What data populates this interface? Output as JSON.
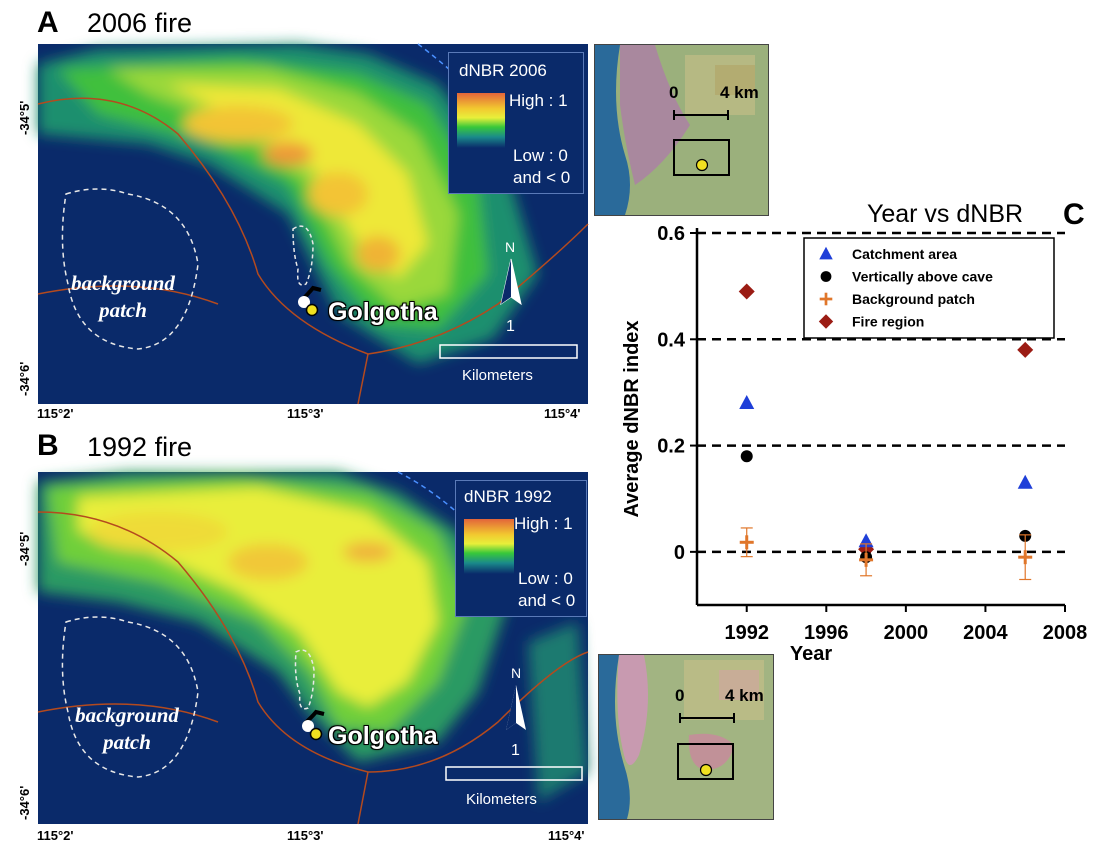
{
  "panel_a": {
    "letter": "A",
    "title": "2006 fire",
    "legend_title": "dNBR 2006",
    "legend_high": "High : 1",
    "legend_low": "Low : 0",
    "legend_low2": "and < 0",
    "background_label_1": "background",
    "background_label_2": "patch",
    "site_label": "Golgotha",
    "north": "N",
    "scale_value": "1",
    "scale_unit": "Kilometers",
    "lat_ticks": [
      "-34°5'",
      "-34°6'"
    ],
    "lon_ticks": [
      "115°2'",
      "115°3'",
      "115°4'"
    ],
    "inset_scale_0": "0",
    "inset_scale_1": "4 km"
  },
  "panel_b": {
    "letter": "B",
    "title": "1992 fire",
    "legend_title": "dNBR 1992",
    "legend_high": "High : 1",
    "legend_low": "Low : 0",
    "legend_low2": "and < 0",
    "background_label_1": "background",
    "background_label_2": "patch",
    "site_label": "Golgotha",
    "north": "N",
    "scale_value": "1",
    "scale_unit": "Kilometers",
    "lat_ticks": [
      "-34°5'",
      "-34°6'"
    ],
    "lon_ticks": [
      "115°2'",
      "115°3'",
      "115°4'"
    ],
    "inset_scale_0": "0",
    "inset_scale_1": "4 km"
  },
  "panel_c": {
    "letter": "C"
  },
  "colors": {
    "map_background": "#0a2a6a",
    "catchment": "#1f3fd8",
    "cave": "#000000",
    "background_patch": "#e0762a",
    "fire_region": "#9b1c14"
  },
  "chart_data": {
    "type": "scatter",
    "title": "Year vs dNBR",
    "xlabel": "Year",
    "ylabel": "Average dNBR index",
    "xlim": [
      1989.5,
      2008
    ],
    "ylim": [
      -0.1,
      0.6
    ],
    "xticks": [
      1992,
      1996,
      2000,
      2004,
      2008
    ],
    "yticks": [
      0,
      0.2,
      0.4,
      0.6
    ],
    "xtick_labels": [
      "1992",
      "1996",
      "2000",
      "2004",
      "2008"
    ],
    "ytick_labels": [
      "0",
      "0.2",
      "0.4",
      "0.6"
    ],
    "reference_lines": [
      0,
      0.2,
      0.4,
      0.6
    ],
    "legend_position": "top-right",
    "series": [
      {
        "name": "Catchment area",
        "marker": "triangle",
        "color": "#1f3fd8",
        "points": [
          {
            "x": 1992,
            "y": 0.28
          },
          {
            "x": 1998,
            "y": 0.02
          },
          {
            "x": 2006,
            "y": 0.13
          }
        ]
      },
      {
        "name": "Vertically above cave",
        "marker": "circle",
        "color": "#000000",
        "points": [
          {
            "x": 1992,
            "y": 0.18
          },
          {
            "x": 1998,
            "y": -0.01
          },
          {
            "x": 2006,
            "y": 0.03
          }
        ]
      },
      {
        "name": "Background patch",
        "marker": "plus",
        "color": "#e0762a",
        "points": [
          {
            "x": 1992,
            "y": 0.018,
            "err": 0.027
          },
          {
            "x": 1998,
            "y": -0.015,
            "err": 0.03
          },
          {
            "x": 2006,
            "y": -0.01,
            "err": 0.042
          }
        ]
      },
      {
        "name": "Fire region",
        "marker": "diamond",
        "color": "#9b1c14",
        "points": [
          {
            "x": 1992,
            "y": 0.49
          },
          {
            "x": 1998,
            "y": 0.005
          },
          {
            "x": 2006,
            "y": 0.38
          }
        ]
      }
    ]
  }
}
